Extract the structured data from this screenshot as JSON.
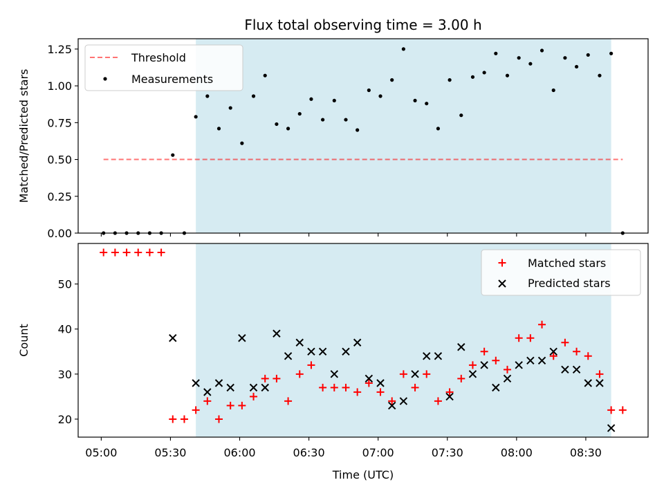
{
  "colors": {
    "shade": "#add8e6",
    "threshold": "#ff0000",
    "measurement": "#000000",
    "matched": "#ff0000",
    "predicted": "#000000"
  },
  "chart_data": [
    {
      "type": "scatter",
      "title": "Flux total observing time = 3.00 h",
      "xlabel": "",
      "ylabel": "Matched/Predicted stars",
      "xlim": [
        "04:50",
        "08:57"
      ],
      "ylim": [
        0,
        1.32
      ],
      "yticks": [
        "0.00",
        "0.25",
        "0.50",
        "0.75",
        "1.00",
        "1.25"
      ],
      "shaded_x_range": [
        "05:41",
        "08:41"
      ],
      "legend_position": "top-left",
      "threshold": {
        "name": "Threshold",
        "y": 0.5,
        "x_range": [
          "05:01",
          "08:46"
        ]
      },
      "series": [
        {
          "name": "Measurements",
          "points": [
            [
              "05:01",
              0.0
            ],
            [
              "05:06",
              0.0
            ],
            [
              "05:11",
              0.0
            ],
            [
              "05:16",
              0.0
            ],
            [
              "05:21",
              0.0
            ],
            [
              "05:26",
              0.0
            ],
            [
              "05:31",
              0.53
            ],
            [
              "05:36",
              0.0
            ],
            [
              "05:41",
              0.79
            ],
            [
              "05:46",
              0.93
            ],
            [
              "05:51",
              0.71
            ],
            [
              "05:56",
              0.85
            ],
            [
              "06:01",
              0.61
            ],
            [
              "06:06",
              0.93
            ],
            [
              "06:11",
              1.07
            ],
            [
              "06:16",
              0.74
            ],
            [
              "06:21",
              0.71
            ],
            [
              "06:26",
              0.81
            ],
            [
              "06:31",
              0.91
            ],
            [
              "06:36",
              0.77
            ],
            [
              "06:41",
              0.9
            ],
            [
              "06:46",
              0.77
            ],
            [
              "06:51",
              0.7
            ],
            [
              "06:56",
              0.97
            ],
            [
              "07:01",
              0.93
            ],
            [
              "07:06",
              1.04
            ],
            [
              "07:11",
              1.25
            ],
            [
              "07:16",
              0.9
            ],
            [
              "07:21",
              0.88
            ],
            [
              "07:26",
              0.71
            ],
            [
              "07:31",
              1.04
            ],
            [
              "07:36",
              0.8
            ],
            [
              "07:41",
              1.06
            ],
            [
              "07:46",
              1.09
            ],
            [
              "07:51",
              1.22
            ],
            [
              "07:56",
              1.07
            ],
            [
              "08:01",
              1.19
            ],
            [
              "08:06",
              1.15
            ],
            [
              "08:11",
              1.24
            ],
            [
              "08:16",
              0.97
            ],
            [
              "08:21",
              1.19
            ],
            [
              "08:26",
              1.13
            ],
            [
              "08:31",
              1.21
            ],
            [
              "08:36",
              1.07
            ],
            [
              "08:41",
              1.22
            ],
            [
              "08:46",
              0.0
            ]
          ]
        }
      ]
    },
    {
      "type": "scatter",
      "title": "",
      "xlabel": "Time (UTC)",
      "ylabel": "Count",
      "xlim": [
        "04:50",
        "08:57"
      ],
      "ylim": [
        16,
        59
      ],
      "yticks": [
        "20",
        "30",
        "40",
        "50"
      ],
      "xticks": [
        "05:00",
        "05:30",
        "06:00",
        "06:30",
        "07:00",
        "07:30",
        "08:00",
        "08:30"
      ],
      "shaded_x_range": [
        "05:41",
        "08:41"
      ],
      "legend_position": "top-right",
      "series": [
        {
          "name": "Matched stars",
          "points": [
            [
              "05:01",
              57
            ],
            [
              "05:06",
              57
            ],
            [
              "05:11",
              57
            ],
            [
              "05:16",
              57
            ],
            [
              "05:21",
              57
            ],
            [
              "05:26",
              57
            ],
            [
              "05:31",
              20
            ],
            [
              "05:36",
              20
            ],
            [
              "05:41",
              22
            ],
            [
              "05:46",
              24
            ],
            [
              "05:51",
              20
            ],
            [
              "05:56",
              23
            ],
            [
              "06:01",
              23
            ],
            [
              "06:06",
              25
            ],
            [
              "06:11",
              29
            ],
            [
              "06:16",
              29
            ],
            [
              "06:21",
              24
            ],
            [
              "06:26",
              30
            ],
            [
              "06:31",
              32
            ],
            [
              "06:36",
              27
            ],
            [
              "06:41",
              27
            ],
            [
              "06:46",
              27
            ],
            [
              "06:51",
              26
            ],
            [
              "06:56",
              28
            ],
            [
              "07:01",
              26
            ],
            [
              "07:06",
              24
            ],
            [
              "07:11",
              30
            ],
            [
              "07:16",
              27
            ],
            [
              "07:21",
              30
            ],
            [
              "07:26",
              24
            ],
            [
              "07:31",
              26
            ],
            [
              "07:36",
              29
            ],
            [
              "07:41",
              32
            ],
            [
              "07:46",
              35
            ],
            [
              "07:51",
              33
            ],
            [
              "07:56",
              31
            ],
            [
              "08:01",
              38
            ],
            [
              "08:06",
              38
            ],
            [
              "08:11",
              41
            ],
            [
              "08:16",
              34
            ],
            [
              "08:21",
              37
            ],
            [
              "08:26",
              35
            ],
            [
              "08:31",
              34
            ],
            [
              "08:36",
              30
            ],
            [
              "08:41",
              22
            ],
            [
              "08:46",
              22
            ]
          ]
        },
        {
          "name": "Predicted stars",
          "points": [
            [
              "05:31",
              38
            ],
            [
              "05:41",
              28
            ],
            [
              "05:46",
              26
            ],
            [
              "05:51",
              28
            ],
            [
              "05:56",
              27
            ],
            [
              "06:01",
              38
            ],
            [
              "06:06",
              27
            ],
            [
              "06:11",
              27
            ],
            [
              "06:16",
              39
            ],
            [
              "06:21",
              34
            ],
            [
              "06:26",
              37
            ],
            [
              "06:31",
              35
            ],
            [
              "06:36",
              35
            ],
            [
              "06:41",
              30
            ],
            [
              "06:46",
              35
            ],
            [
              "06:51",
              37
            ],
            [
              "06:56",
              29
            ],
            [
              "07:01",
              28
            ],
            [
              "07:06",
              23
            ],
            [
              "07:11",
              24
            ],
            [
              "07:16",
              30
            ],
            [
              "07:21",
              34
            ],
            [
              "07:26",
              34
            ],
            [
              "07:31",
              25
            ],
            [
              "07:36",
              36
            ],
            [
              "07:41",
              30
            ],
            [
              "07:46",
              32
            ],
            [
              "07:51",
              27
            ],
            [
              "07:56",
              29
            ],
            [
              "08:01",
              32
            ],
            [
              "08:06",
              33
            ],
            [
              "08:11",
              33
            ],
            [
              "08:16",
              35
            ],
            [
              "08:21",
              31
            ],
            [
              "08:26",
              31
            ],
            [
              "08:31",
              28
            ],
            [
              "08:36",
              28
            ],
            [
              "08:41",
              18
            ]
          ]
        }
      ]
    }
  ]
}
